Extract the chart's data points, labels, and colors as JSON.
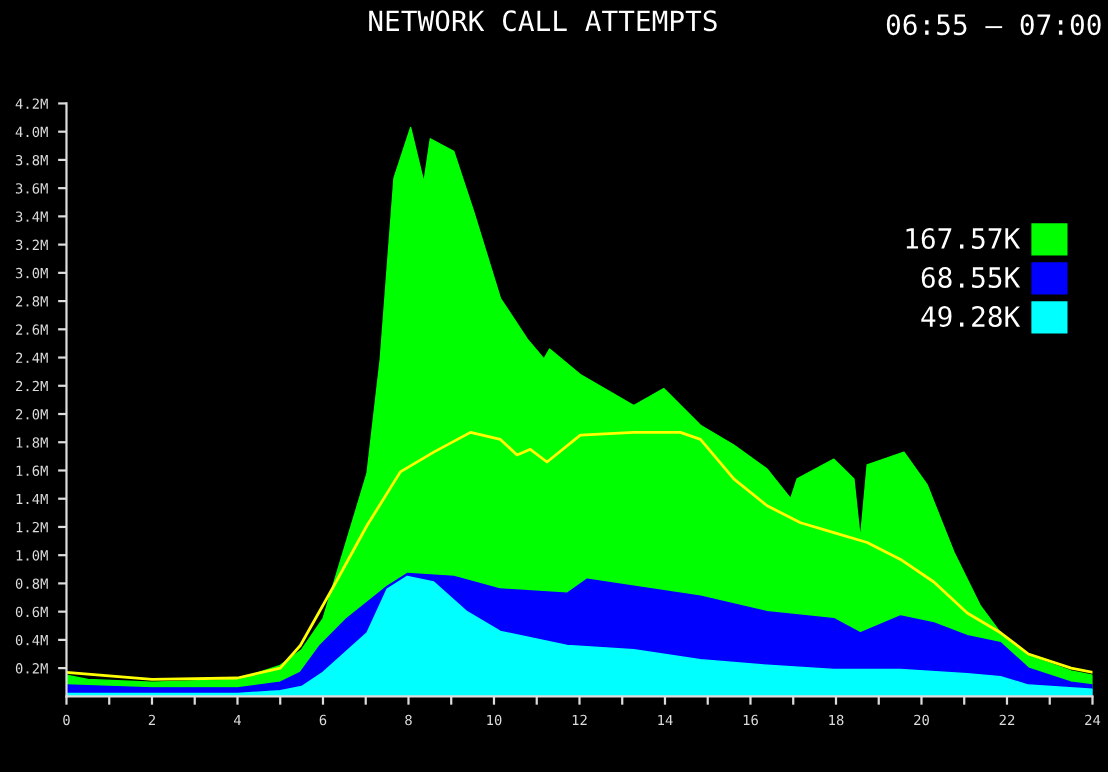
{
  "chart_data": {
    "type": "area",
    "title": "NETWORK CALL ATTEMPTS",
    "subtitle": "06:55 – 07:00",
    "xlim": [
      0,
      24
    ],
    "ylim": [
      0,
      4.2
    ],
    "xticks": [
      0,
      {
        "value": 1,
        "label": null
      },
      2,
      {
        "value": 3,
        "label": null
      },
      4,
      {
        "value": 5,
        "label": null
      },
      6,
      {
        "value": 7,
        "label": null
      },
      8,
      {
        "value": 9,
        "label": null
      },
      10,
      {
        "value": 11,
        "label": null
      },
      12,
      {
        "value": 13,
        "label": null
      },
      14,
      {
        "value": 15,
        "label": null
      },
      16,
      {
        "value": 17,
        "label": null
      },
      18,
      {
        "value": 19,
        "label": null
      },
      20,
      {
        "value": 21,
        "label": null
      },
      22,
      {
        "value": 23,
        "label": null
      },
      24
    ],
    "yticks": [
      {
        "value": 0.2,
        "label": "0.2M"
      },
      {
        "value": 0.4,
        "label": "0.4M"
      },
      {
        "value": 0.6,
        "label": "0.6M"
      },
      {
        "value": 0.8,
        "label": "0.8M"
      },
      {
        "value": 1.0,
        "label": "1.0M"
      },
      {
        "value": 1.2,
        "label": "1.2M"
      },
      {
        "value": 1.4,
        "label": "1.4M"
      },
      {
        "value": 1.6,
        "label": "1.6M"
      },
      {
        "value": 1.8,
        "label": "1.8M"
      },
      {
        "value": 2.0,
        "label": "2.0M"
      },
      {
        "value": 2.2,
        "label": "2.2M"
      },
      {
        "value": 2.4,
        "label": "2.4M"
      },
      {
        "value": 2.6,
        "label": "2.6M"
      },
      {
        "value": 2.8,
        "label": "2.8M"
      },
      {
        "value": 3.0,
        "label": "3.0M"
      },
      {
        "value": 3.2,
        "label": "3.2M"
      },
      {
        "value": 3.4,
        "label": "3.4M"
      },
      {
        "value": 3.6,
        "label": "3.6M"
      },
      {
        "value": 3.8,
        "label": "3.8M"
      },
      {
        "value": 4.0,
        "label": "4.0M"
      },
      {
        "value": 4.2,
        "label": "4.2M"
      }
    ],
    "grid": false,
    "legend": "top right",
    "series": [
      {
        "name": "167.57K",
        "color": "#00ff00",
        "x": [
          0,
          0.5,
          2,
          4,
          5,
          5.5,
          6,
          7.03,
          7.34,
          7.66,
          8.05,
          8.36,
          8.51,
          9.06,
          9.53,
          10.15,
          10.78,
          11.17,
          11.3,
          12.02,
          13.27,
          13.97,
          14.83,
          15.61,
          16.39,
          16.94,
          17.09,
          17.95,
          18.42,
          18.57,
          18.73,
          19.59,
          20.13,
          20.76,
          21.38,
          21.85,
          22.5,
          23.5,
          24
        ],
        "values": [
          0.15,
          0.12,
          0.1,
          0.12,
          0.22,
          0.33,
          0.55,
          1.58,
          2.39,
          3.67,
          4.03,
          3.64,
          3.95,
          3.86,
          3.43,
          2.82,
          2.53,
          2.39,
          2.46,
          2.28,
          2.06,
          2.18,
          1.92,
          1.78,
          1.61,
          1.4,
          1.54,
          1.68,
          1.54,
          1.11,
          1.64,
          1.73,
          1.5,
          1.02,
          0.64,
          0.45,
          0.29,
          0.18,
          0.15
        ]
      },
      {
        "name": "68.55K",
        "color": "#0000ff",
        "x": [
          0,
          2,
          4,
          5,
          5.47,
          5.93,
          6.55,
          7.5,
          7.97,
          9.06,
          10.15,
          11.71,
          12.18,
          13.27,
          14.83,
          16.39,
          17.95,
          18.57,
          19.51,
          20.29,
          21.07,
          21.85,
          22.5,
          23.5,
          24
        ],
        "values": [
          0.08,
          0.06,
          0.06,
          0.1,
          0.17,
          0.36,
          0.55,
          0.78,
          0.87,
          0.85,
          0.76,
          0.73,
          0.83,
          0.78,
          0.71,
          0.6,
          0.55,
          0.45,
          0.57,
          0.52,
          0.43,
          0.38,
          0.2,
          0.1,
          0.08
        ]
      },
      {
        "name": "49.28K",
        "color": "#00ffff",
        "x": [
          0,
          2,
          4,
          5,
          5.5,
          6,
          7.03,
          7.5,
          7.97,
          8.59,
          9.37,
          10.15,
          11.71,
          13.27,
          14.83,
          16.39,
          17.95,
          19.51,
          21.07,
          21.85,
          22.5,
          24
        ],
        "values": [
          0.02,
          0.02,
          0.02,
          0.04,
          0.07,
          0.17,
          0.45,
          0.76,
          0.85,
          0.81,
          0.6,
          0.46,
          0.36,
          0.33,
          0.26,
          0.22,
          0.19,
          0.19,
          0.16,
          0.14,
          0.08,
          0.05
        ]
      },
      {
        "type": "line",
        "color": "#ffff00",
        "x": [
          0,
          2,
          4,
          5,
          5.47,
          6.25,
          7.03,
          7.81,
          8.59,
          9.45,
          10.15,
          10.54,
          10.85,
          11.24,
          12.02,
          13.27,
          14.36,
          14.83,
          15.61,
          16.39,
          17.17,
          17.95,
          18.73,
          19.51,
          20.29,
          21.07,
          21.85,
          22.5,
          23.5,
          24
        ],
        "values": [
          0.17,
          0.12,
          0.13,
          0.2,
          0.36,
          0.78,
          1.21,
          1.59,
          1.73,
          1.87,
          1.82,
          1.71,
          1.75,
          1.66,
          1.85,
          1.87,
          1.87,
          1.82,
          1.54,
          1.35,
          1.23,
          1.16,
          1.09,
          0.97,
          0.81,
          0.59,
          0.45,
          0.3,
          0.2,
          0.17
        ]
      }
    ]
  }
}
